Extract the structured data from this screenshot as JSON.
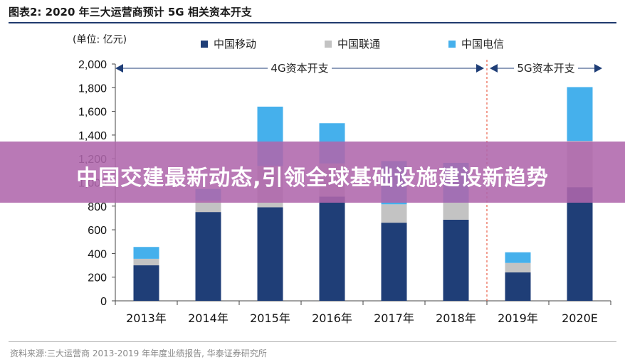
{
  "header": {
    "title": "图表2:   2020 年三大运营商预计 5G 相关资本开支"
  },
  "footer": {
    "source": "资料来源:三大运营商 2013-2019 年年度业绩报告, 华泰证券研究所"
  },
  "overlay": {
    "banner_text": "中国交建最新动态,引领全球基础设施建设新趋势"
  },
  "colors": {
    "china_mobile": "#1f3e77",
    "china_unicom": "#c3c3c3",
    "china_telecom": "#45b0ec",
    "annotation_arrow": "#1f3e77",
    "divider": "#e8604a"
  },
  "chart_data": {
    "type": "bar",
    "stacked": true,
    "unit_label": "(单位: 亿元)",
    "categories": [
      "2013年",
      "2014年",
      "2015年",
      "2016年",
      "2017年",
      "2018年",
      "2019年",
      "2020E"
    ],
    "series": [
      {
        "name": "中国移动",
        "values": [
          300,
          750,
          790,
          880,
          660,
          685,
          240,
          960
        ]
      },
      {
        "name": "中国联通",
        "values": [
          55,
          95,
          350,
          280,
          155,
          145,
          80,
          390
        ]
      },
      {
        "name": "中国电信",
        "values": [
          100,
          100,
          500,
          340,
          365,
          335,
          90,
          455
        ]
      }
    ],
    "ylim": [
      0,
      2000
    ],
    "yticks": [
      0,
      200,
      400,
      600,
      800,
      1000,
      1200,
      1400,
      1600,
      1800,
      2000
    ],
    "ytick_labels": [
      "0",
      "200",
      "400",
      "600",
      "800",
      "1,000",
      "1,200",
      "1,400",
      "1,600",
      "1,800",
      "2,000"
    ],
    "legend_position": "top",
    "grid": false,
    "annotations": [
      {
        "text": "4G资本开支",
        "from_category": "2013年",
        "to_category": "2018年"
      },
      {
        "text": "5G资本开支",
        "from_category": "2019年",
        "to_category": "2020E"
      }
    ],
    "divider_between": [
      "2018年",
      "2019年"
    ]
  }
}
